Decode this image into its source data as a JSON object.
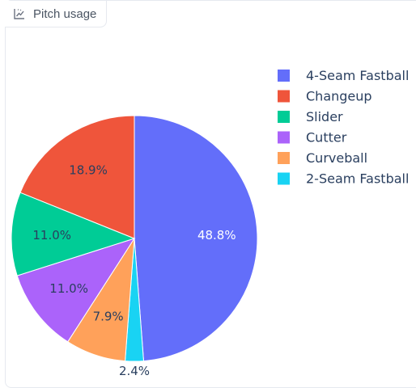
{
  "tab": {
    "label": "Pitch usage",
    "icon": "chart-line-icon"
  },
  "chart_data": {
    "type": "pie",
    "title": "",
    "slices": [
      {
        "name": "4-Seam Fastball",
        "value": 48.8,
        "label": "48.8%",
        "color": "#636efa",
        "label_color": "#ffffff"
      },
      {
        "name": "2-Seam Fastball",
        "value": 2.4,
        "label": "2.4%",
        "color": "#19d3f3",
        "label_color": "#2a3f5f"
      },
      {
        "name": "Curveball",
        "value": 7.9,
        "label": "7.9%",
        "color": "#ffa15a",
        "label_color": "#2a3f5f"
      },
      {
        "name": "Cutter",
        "value": 11.0,
        "label": "11.0%",
        "color": "#ab63fa",
        "label_color": "#2a3f5f"
      },
      {
        "name": "Slider",
        "value": 11.0,
        "label": "11.0%",
        "color": "#00cc96",
        "label_color": "#2a3f5f"
      },
      {
        "name": "Changeup",
        "value": 18.9,
        "label": "18.9%",
        "color": "#ef553b",
        "label_color": "#2a3f5f"
      }
    ],
    "legend": {
      "placement": "top-right",
      "order": [
        "4-Seam Fastball",
        "Changeup",
        "Slider",
        "Cutter",
        "Curveball",
        "2-Seam Fastball"
      ]
    }
  }
}
